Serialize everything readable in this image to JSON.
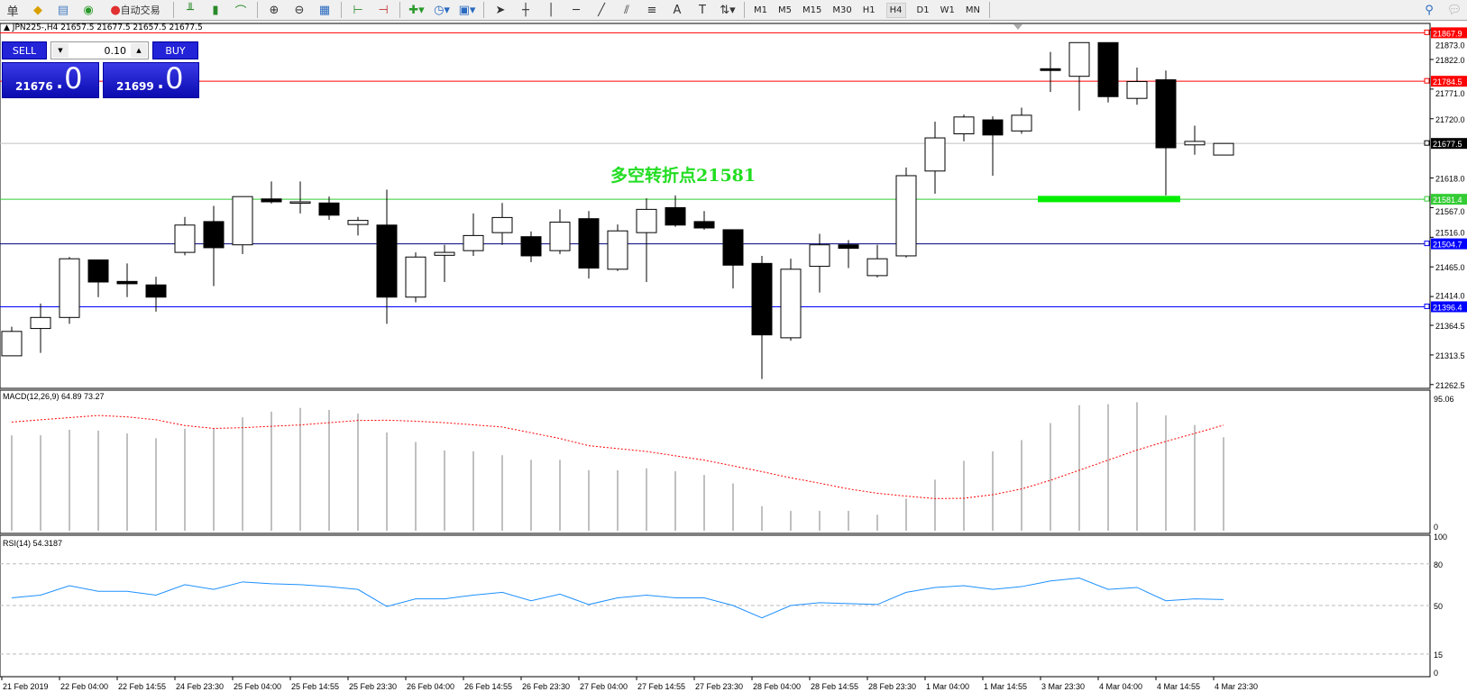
{
  "toolbar": {
    "cut_label": "单",
    "autotrade_label": "自动交易",
    "icons": [
      "new-order-icon",
      "market-watch-icon",
      "navigator-icon",
      "signals-icon",
      "autotrade-icon",
      "bar-chart-icon",
      "candlestick-icon",
      "line-chart-icon",
      "zoom-in-icon",
      "zoom-out-icon",
      "tile-windows-icon",
      "chart-shift-icon",
      "autoscroll-icon",
      "indicators-icon",
      "periods-icon",
      "templates-icon",
      "cursor-icon",
      "crosshair-icon",
      "vertical-line-icon",
      "horizontal-line-icon",
      "trendline-icon",
      "fibonacci-icon",
      "fibo-fan-icon",
      "text-icon",
      "text-label-icon",
      "arrows-icon",
      "search-icon",
      "chat-icon"
    ],
    "timeframes": [
      "M1",
      "M5",
      "M15",
      "M30",
      "H1",
      "H4",
      "D1",
      "W1",
      "MN"
    ],
    "active_timeframe": "H4"
  },
  "chart": {
    "title": "JPN225-,H4  21657.5 21677.5 21657.5 21677.5",
    "annotation": "多空转折点21581",
    "annotation_color": "#22dd22"
  },
  "one_click": {
    "sell_label": "SELL",
    "buy_label": "BUY",
    "lot": "0.10",
    "sell_big": "21676",
    "sell_small": ".0",
    "buy_big": "21699",
    "buy_small": ".0"
  },
  "chart_data": [
    {
      "type": "candlestick",
      "panel": "main",
      "ylim": [
        21256,
        21884
      ],
      "price_ticks": [
        "21873.0",
        "21822.0",
        "21771.0",
        "21720.0",
        "21618.0",
        "21567.0",
        "21516.0",
        "21465.0",
        "21414.0",
        "21364.5",
        "21313.5",
        "21262.5"
      ],
      "hlines": [
        {
          "price": 21867.9,
          "label": "21867.9",
          "color": "#ff0000"
        },
        {
          "price": 21784.5,
          "label": "21784.5",
          "color": "#ff0000"
        },
        {
          "price": 21677.5,
          "label": "21677.5",
          "color": "#000000",
          "line": "#c0c0c0"
        },
        {
          "price": 21581.4,
          "label": "21581.4",
          "color": "#33cc33"
        },
        {
          "price": 21504.7,
          "label": "21504.7",
          "color": "#0000ff",
          "line": "#000080"
        },
        {
          "price": 21396.4,
          "label": "21396.4",
          "color": "#0000ff"
        }
      ],
      "support_bar": {
        "price": 21581,
        "from_index": 36,
        "to_index": 40,
        "color": "#00ee00"
      },
      "ohlc": [
        [
          21312,
          21362,
          21312,
          21354
        ],
        [
          21359,
          21402,
          21317,
          21378
        ],
        [
          21378,
          21482,
          21367,
          21479
        ],
        [
          21477,
          21477,
          21413,
          21439
        ],
        [
          21440,
          21471,
          21413,
          21436
        ],
        [
          21434,
          21448,
          21388,
          21413
        ],
        [
          21490,
          21551,
          21485,
          21537
        ],
        [
          21543,
          21570,
          21432,
          21498
        ],
        [
          21503,
          21586,
          21487,
          21586
        ],
        [
          21582,
          21612,
          21574,
          21577
        ],
        [
          21575,
          21612,
          21557,
          21577
        ],
        [
          21575,
          21586,
          21546,
          21554
        ],
        [
          21538,
          21551,
          21519,
          21545
        ],
        [
          21537,
          21598,
          21367,
          21413
        ],
        [
          21413,
          21490,
          21404,
          21482
        ],
        [
          21485,
          21503,
          21439,
          21490
        ],
        [
          21493,
          21557,
          21484,
          21519
        ],
        [
          21524,
          21575,
          21503,
          21550
        ],
        [
          21517,
          21526,
          21473,
          21484
        ],
        [
          21493,
          21564,
          21487,
          21542
        ],
        [
          21548,
          21561,
          21445,
          21463
        ],
        [
          21461,
          21538,
          21458,
          21527
        ],
        [
          21524,
          21583,
          21439,
          21564
        ],
        [
          21567,
          21588,
          21534,
          21537
        ],
        [
          21543,
          21561,
          21529,
          21532
        ],
        [
          21529,
          21529,
          21428,
          21468
        ],
        [
          21471,
          21484,
          21272,
          21348
        ],
        [
          21343,
          21479,
          21338,
          21461
        ],
        [
          21466,
          21522,
          21421,
          21503
        ],
        [
          21503,
          21511,
          21463,
          21497
        ],
        [
          21450,
          21503,
          21447,
          21479
        ],
        [
          21484,
          21636,
          21481,
          21622
        ],
        [
          21630,
          21715,
          21591,
          21687
        ],
        [
          21694,
          21727,
          21681,
          21723
        ],
        [
          21718,
          21724,
          21622,
          21692
        ],
        [
          21699,
          21739,
          21694,
          21726
        ],
        [
          21806,
          21835,
          21766,
          21803
        ],
        [
          21793,
          21851,
          21734,
          21851
        ],
        [
          21851,
          21851,
          21748,
          21758
        ],
        [
          21755,
          21808,
          21744,
          21784
        ],
        [
          21787,
          21803,
          21588,
          21670
        ],
        [
          21675,
          21708,
          21658,
          21681
        ],
        [
          21657.5,
          21677.5,
          21657.5,
          21677.5
        ]
      ]
    },
    {
      "type": "bar+line",
      "panel": "MACD",
      "label": "MACD(12,26,9) 64.89 73.27",
      "ylim": [
        0,
        95.06
      ],
      "ticks": [
        "95.06",
        "0"
      ],
      "histogram": [
        66.2,
        66.2,
        70.1,
        69.5,
        67.5,
        64.2,
        70.8,
        70.8,
        78.7,
        82.6,
        85.2,
        83.9,
        81.3,
        68.2,
        61.6,
        55.7,
        55.1,
        52.4,
        49.2,
        49.2,
        42.0,
        42.0,
        43.3,
        41.3,
        38.7,
        32.8,
        17.0,
        13.8,
        13.8,
        13.8,
        11.1,
        22.3,
        35.4,
        48.5,
        55.1,
        62.9,
        74.7,
        87.2,
        87.8,
        89.2,
        80.0,
        73.4,
        64.89
      ],
      "signal": [
        75.4,
        77,
        78.5,
        80,
        79,
        77,
        73,
        71,
        71.5,
        72.5,
        73.4,
        75,
        76.5,
        76.7,
        76,
        75,
        73.5,
        72,
        68,
        64,
        59,
        57,
        55,
        52,
        49,
        45,
        41,
        36.7,
        33,
        29,
        26,
        24,
        22.3,
        22.5,
        25,
        29,
        35,
        42,
        49,
        56,
        62,
        67.5,
        73.27
      ],
      "hist_color": "#c0c0c0",
      "signal_color": "#ff0000"
    },
    {
      "type": "line",
      "panel": "RSI",
      "label": "RSI(14) 54.3187",
      "ylim": [
        0,
        100
      ],
      "levels": [
        80,
        50,
        15
      ],
      "ticks": [
        "100",
        "80",
        "50",
        "15",
        "0"
      ],
      "values": [
        55.5,
        57.5,
        64.3,
        60.2,
        60.2,
        57.5,
        65.0,
        61.6,
        67.0,
        65.7,
        65.0,
        63.6,
        61.6,
        49.3,
        54.8,
        54.8,
        57.5,
        59.5,
        53.4,
        58.2,
        50.7,
        55.5,
        57.5,
        55.5,
        55.5,
        50.0,
        41.1,
        50.0,
        52.0,
        51.4,
        50.7,
        59.5,
        63.0,
        64.3,
        61.6,
        63.6,
        67.7,
        69.8,
        61.6,
        63.0,
        53.4,
        54.8,
        54.3187
      ],
      "color": "#1e90ff"
    },
    {
      "type": "time_axis",
      "labels": [
        "21 Feb 2019",
        "22 Feb 04:00",
        "22 Feb 14:55",
        "24 Feb 23:30",
        "25 Feb 04:00",
        "25 Feb 14:55",
        "25 Feb 23:30",
        "26 Feb 04:00",
        "26 Feb 14:55",
        "26 Feb 23:30",
        "27 Feb 04:00",
        "27 Feb 14:55",
        "27 Feb 23:30",
        "28 Feb 04:00",
        "28 Feb 14:55",
        "28 Feb 23:30",
        "1 Mar 04:00",
        "1 Mar 14:55",
        "3 Mar 23:30",
        "4 Mar 04:00",
        "4 Mar 14:55",
        "4 Mar 23:30"
      ]
    }
  ]
}
